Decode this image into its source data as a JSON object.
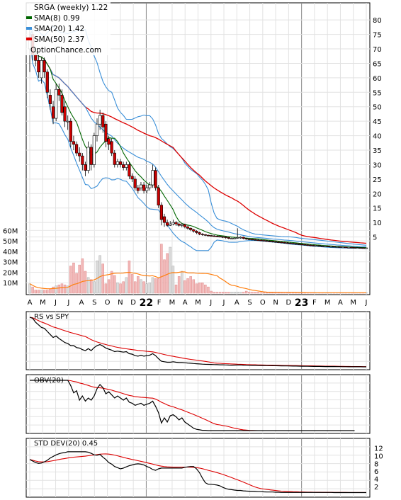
{
  "main_panel": {
    "legend": {
      "title": "SRGA (weekly) 1.22",
      "sma8": "SMA(8) 0.99",
      "sma20": "SMA(20) 1.42",
      "sma50": "SMA(50) 2.37",
      "source": "OptionChance.com"
    },
    "colors": {
      "up": "#ffffff",
      "down": "#cc0000",
      "sma8": "#006600",
      "sma20": "#3a8fd8",
      "sma50": "#dd0000",
      "bollinger": "#3a8fd8",
      "yellow": "#eeee44",
      "vol_up": "#dddddd",
      "vol_down": "#f2b8b8",
      "vol_avg": "#ff7f0e"
    }
  },
  "x_axis": {
    "ticks": [
      "A",
      "M",
      "J",
      "J",
      "A",
      "S",
      "O",
      "N",
      "D",
      "22",
      "F",
      "M",
      "A",
      "M",
      "J",
      "J",
      "A",
      "S",
      "O",
      "N",
      "D",
      "23",
      "F",
      "M",
      "A",
      "M",
      "J"
    ],
    "year_ticks": [
      "22",
      "23"
    ]
  },
  "price_axis": {
    "ticks": [
      "80",
      "75",
      "70",
      "65",
      "60",
      "55",
      "50",
      "45",
      "40",
      "35",
      "30",
      "25",
      "20",
      "15",
      "10",
      "5"
    ]
  },
  "volume_axis": {
    "ticks": [
      "60M",
      "50M",
      "40M",
      "30M",
      "20M",
      "10M"
    ]
  },
  "panels": {
    "rs": {
      "label": "RS vs SPY"
    },
    "obv": {
      "label": "OBV(20)"
    },
    "std": {
      "label": "STD DEV(20) 0.45",
      "ticks": [
        "12",
        "10",
        "8",
        "6",
        "4",
        "2"
      ]
    }
  },
  "chart_data": [
    {
      "type": "candlestick",
      "title": "SRGA (weekly) 1.22",
      "x": [
        "2021-03-29",
        "2021-04-05",
        "2021-04-12",
        "2021-04-19",
        "2021-04-26",
        "2021-05-03",
        "2021-05-10",
        "2021-05-17",
        "2021-05-24",
        "2021-05-31",
        "2021-06-07",
        "2021-06-14",
        "2021-06-21",
        "2021-06-28",
        "2021-07-05",
        "2021-07-12",
        "2021-07-19",
        "2021-07-26",
        "2021-08-02",
        "2021-08-09",
        "2021-08-16",
        "2021-08-23",
        "2021-08-30",
        "2021-09-06",
        "2021-09-13",
        "2021-09-20",
        "2021-09-27",
        "2021-10-04",
        "2021-10-11",
        "2021-10-18",
        "2021-10-25",
        "2021-11-01",
        "2021-11-08",
        "2021-11-15",
        "2021-11-22",
        "2021-11-29",
        "2021-12-06",
        "2021-12-13",
        "2021-12-20",
        "2021-12-27",
        "2022-01-03",
        "2022-01-10",
        "2022-01-17",
        "2022-01-24",
        "2022-01-31",
        "2022-02-07",
        "2022-02-14",
        "2022-02-21",
        "2022-02-28",
        "2022-03-07",
        "2022-03-14",
        "2022-03-21",
        "2022-03-28",
        "2022-04-04",
        "2022-04-11",
        "2022-04-18",
        "2022-04-25",
        "2022-05-02",
        "2022-05-09",
        "2022-05-16",
        "2022-05-23",
        "2022-05-30",
        "2022-06-06",
        "2022-06-13",
        "2022-06-20",
        "2022-06-27",
        "2022-07-04",
        "2022-07-11",
        "2022-07-18",
        "2022-07-25",
        "2022-08-01",
        "2022-08-08",
        "2022-08-15",
        "2022-08-22",
        "2022-08-29",
        "2022-09-05",
        "2022-09-12",
        "2022-09-19",
        "2022-09-26",
        "2022-10-03",
        "2022-10-10",
        "2022-10-17",
        "2022-10-24",
        "2022-10-31",
        "2022-11-07",
        "2022-11-14",
        "2022-11-21",
        "2022-11-28",
        "2022-12-05",
        "2022-12-12",
        "2022-12-19",
        "2022-12-26",
        "2023-01-02",
        "2023-01-09",
        "2023-01-16",
        "2023-01-23",
        "2023-01-30",
        "2023-02-06",
        "2023-02-13",
        "2023-02-20",
        "2023-02-27",
        "2023-03-06",
        "2023-03-13",
        "2023-03-20",
        "2023-03-27",
        "2023-04-03",
        "2023-04-10",
        "2023-04-17",
        "2023-04-24",
        "2023-05-01",
        "2023-05-08",
        "2023-05-15",
        "2023-05-22",
        "2023-05-29",
        "2023-06-05",
        "2023-06-12"
      ],
      "open": [
        70,
        75,
        68,
        66,
        60,
        66,
        62,
        54,
        50,
        46,
        56,
        54,
        50,
        45,
        45,
        38,
        37,
        34,
        33,
        30,
        28,
        36,
        30,
        40,
        44,
        47,
        44,
        39,
        38,
        34,
        30,
        31,
        30,
        29,
        30,
        26,
        25,
        22,
        22,
        23,
        21,
        22,
        23,
        28,
        22,
        16,
        12,
        10,
        9,
        9.5,
        10,
        9.5,
        9,
        9.3,
        8.5,
        8,
        7.5,
        7,
        6.5,
        6,
        5.8,
        5.6,
        5.5,
        5.4,
        5.3,
        5.2,
        5.1,
        5.0,
        4.8,
        4.5,
        4.5,
        4.6,
        4.8,
        4.9,
        4.5,
        4.3,
        4.2,
        4.1,
        4.0,
        3.9,
        3.8,
        3.7,
        3.6,
        3.5,
        3.4,
        3.3,
        3.2,
        3.1,
        3.0,
        2.9,
        2.8,
        2.7,
        2.6,
        2.5,
        2.4,
        2.3,
        2.2,
        2.1,
        2.0,
        2.0,
        1.9,
        1.8,
        1.8,
        1.7,
        1.7,
        1.6,
        1.6,
        1.5,
        1.5,
        1.4,
        1.4,
        1.35,
        1.3,
        1.3,
        1.25,
        1.22
      ],
      "close": [
        74,
        68,
        66,
        62,
        66,
        62,
        55,
        51,
        46,
        56,
        54,
        48,
        45,
        45,
        38,
        37,
        34,
        33,
        30,
        28,
        36,
        30,
        40,
        44,
        47,
        43,
        38,
        37,
        34,
        30,
        31,
        30,
        29,
        30,
        26,
        25,
        22,
        21,
        23,
        21,
        22,
        23,
        28,
        22,
        16,
        11,
        10,
        9,
        9.5,
        10,
        9.5,
        9,
        9.3,
        8.5,
        8,
        7.5,
        7,
        6.5,
        6,
        5.8,
        5.6,
        5.5,
        5.4,
        5.3,
        5.2,
        5.1,
        5.0,
        4.8,
        4.5,
        4.5,
        4.6,
        4.8,
        4.9,
        4.5,
        4.3,
        4.2,
        4.1,
        4.0,
        3.9,
        3.8,
        3.7,
        3.6,
        3.5,
        3.4,
        3.3,
        3.2,
        3.1,
        3.0,
        2.9,
        2.8,
        2.7,
        2.6,
        2.5,
        2.4,
        2.3,
        2.2,
        2.1,
        2.0,
        2.0,
        1.9,
        1.8,
        1.8,
        1.7,
        1.7,
        1.6,
        1.6,
        1.5,
        1.5,
        1.4,
        1.4,
        1.35,
        1.3,
        1.3,
        1.25,
        1.22,
        1.22
      ],
      "high": [
        77,
        76,
        70,
        68,
        67,
        67,
        63,
        56,
        52,
        58,
        58,
        56,
        52,
        47,
        46,
        40,
        38,
        36,
        34,
        31,
        38,
        37,
        41,
        46,
        49,
        48,
        45,
        40,
        39,
        35,
        32,
        32,
        31,
        31,
        31,
        27,
        26,
        23,
        24,
        24,
        23,
        24,
        30,
        29,
        23,
        17,
        13,
        11,
        10.5,
        11,
        10.5,
        10,
        9.8,
        9.6,
        9,
        8.3,
        7.8,
        7.3,
        6.8,
        6.3,
        6.0,
        5.8,
        5.7,
        5.6,
        5.5,
        5.4,
        5.3,
        5.2,
        5.0,
        4.8,
        4.9,
        8.0,
        5.2,
        5.1,
        4.7,
        4.5,
        4.4,
        4.3,
        4.2,
        4.1,
        4.0,
        3.9,
        3.8,
        3.7,
        3.6,
        3.5,
        3.4,
        3.3,
        3.2,
        3.1,
        3.0,
        2.9,
        2.8,
        2.7,
        2.6,
        2.5,
        2.4,
        2.3,
        2.2,
        2.1,
        2.0,
        1.9,
        1.9,
        1.8,
        1.8,
        1.7,
        1.7,
        1.6,
        1.6,
        1.5,
        1.5,
        1.45,
        1.4,
        1.35,
        1.3,
        1.28
      ],
      "low": [
        62,
        66,
        64,
        60,
        58,
        60,
        53,
        49,
        44,
        45,
        52,
        47,
        43,
        42,
        36,
        35,
        33,
        31,
        28,
        26,
        27,
        28,
        29,
        38,
        42,
        41,
        36,
        35,
        33,
        29,
        29,
        29,
        28,
        28,
        25,
        24,
        21,
        20,
        21,
        20,
        20,
        21,
        22,
        21,
        15,
        9,
        8.5,
        8.5,
        8.8,
        9,
        8.8,
        8.5,
        8.3,
        8,
        7.5,
        7,
        6.5,
        6,
        5.6,
        5.4,
        5.3,
        5.2,
        5.1,
        5.0,
        4.9,
        4.8,
        4.6,
        4.3,
        4.2,
        4.3,
        4.3,
        4.4,
        4.4,
        4.2,
        4.0,
        3.9,
        3.8,
        3.7,
        3.6,
        3.5,
        3.4,
        3.3,
        3.2,
        3.1,
        3.0,
        2.9,
        2.8,
        2.7,
        2.6,
        2.5,
        2.4,
        2.3,
        2.2,
        2.1,
        2.0,
        1.9,
        1.8,
        1.8,
        1.7,
        1.7,
        1.6,
        1.6,
        1.5,
        1.5,
        1.4,
        1.4,
        1.35,
        1.3,
        1.3,
        1.25,
        1.2,
        1.18,
        1.15,
        1.15,
        1.15,
        1.15
      ],
      "volume_millions": [
        9,
        6,
        3,
        3,
        3,
        3,
        3,
        4,
        6,
        7,
        8,
        9,
        8,
        7,
        26,
        29,
        19,
        27,
        33,
        21,
        15,
        13,
        11,
        31,
        36,
        28,
        9,
        13,
        21,
        17,
        10,
        9,
        11,
        15,
        31,
        18,
        11,
        16,
        13,
        11,
        9,
        10,
        15,
        14,
        14,
        47,
        32,
        38,
        44,
        26,
        8,
        16,
        21,
        12,
        14,
        16,
        13,
        9,
        10,
        10,
        8,
        6,
        2,
        1,
        1,
        1,
        1,
        1,
        1,
        1,
        1,
        1,
        1,
        1,
        2,
        1,
        1,
        1,
        1,
        0.5,
        0.5,
        0.5,
        0.5,
        0.5,
        0.5,
        0.5,
        0.5,
        0.5,
        0.5,
        0.5,
        0.5,
        0.5,
        0.5,
        0.5,
        0.5,
        0.5,
        0.5,
        0.5,
        0.5,
        0.5,
        0.5,
        0.5,
        0.5,
        0.5,
        0.5,
        0.5,
        0.5,
        0.5,
        0.5,
        0.5,
        0.5,
        0.5,
        0.5,
        0.5,
        0.5,
        0.5
      ],
      "sma8_value": 0.99,
      "sma20_value": 1.42,
      "sma50_value": 2.37,
      "price_ylim": [
        0,
        82
      ],
      "volume_ylim": [
        0,
        65
      ]
    },
    {
      "type": "line",
      "title": "RS vs SPY",
      "series": [
        {
          "values": [
            100,
            98,
            90,
            85,
            80,
            78,
            72,
            66,
            60,
            63,
            58,
            54,
            50,
            48,
            44,
            44,
            40,
            39,
            36,
            34,
            38,
            34,
            40,
            44,
            46,
            43,
            39,
            37,
            35,
            32,
            33,
            32,
            31,
            32,
            28,
            27,
            24,
            23,
            25,
            23,
            24,
            25,
            28,
            24,
            18,
            13,
            12,
            11,
            11,
            12,
            11,
            10.5,
            10.5,
            10,
            9.5,
            9,
            8.5,
            8,
            7.6,
            7.2,
            7,
            6.8,
            6.6,
            6.4,
            6.2,
            6.0,
            5.9,
            5.7,
            5.4,
            5.3,
            5.4,
            5.6,
            5.7,
            5.3,
            5.1,
            5.0,
            4.9,
            4.8,
            4.7,
            4.6,
            4.5,
            4.4,
            4.3,
            4.2,
            4.1,
            4.0,
            3.9,
            3.8,
            3.7,
            3.6,
            3.5,
            3.4,
            3.3,
            3.2,
            3.1,
            3.0,
            2.9,
            2.8,
            2.7,
            2.7,
            2.6,
            2.5,
            2.5,
            2.4,
            2.4,
            2.3,
            2.3,
            2.2,
            2.2,
            2.1,
            2.1,
            2.0,
            2.0,
            2.0,
            1.9,
            1.9
          ]
        }
      ]
    },
    {
      "type": "line",
      "title": "OBV(20)",
      "series": [
        {
          "values": [
            100,
            100,
            100,
            100,
            100,
            100,
            100,
            100,
            100,
            100,
            100,
            100,
            100,
            100,
            90,
            76,
            80,
            62,
            70,
            60,
            66,
            62,
            70,
            84,
            92,
            86,
            74,
            78,
            72,
            66,
            70,
            66,
            62,
            66,
            58,
            56,
            52,
            54,
            56,
            52,
            54,
            56,
            60,
            50,
            38,
            18,
            28,
            20,
            32,
            34,
            30,
            24,
            28,
            20,
            16,
            12,
            8,
            6,
            5,
            4,
            4,
            3.5,
            3.5,
            3.5,
            3.5,
            3.5,
            3.5,
            3.5,
            3.5,
            3.5,
            3.5,
            3.5,
            3.5,
            3.5,
            3.5,
            3.5,
            3.5,
            3.5,
            3.5,
            3.5,
            3.5,
            3.5,
            3.5,
            3.5,
            3.5,
            3.5,
            3.5,
            3.5,
            3.5,
            3.5,
            3.5,
            3.5,
            3.5,
            3.5,
            3.5,
            3.5,
            3.5,
            3.5,
            3.5,
            3.5,
            3.5,
            3.5,
            3.5,
            3.5,
            3.5,
            3.5,
            3.5,
            3.5,
            3.5,
            3.5,
            3.5,
            3.5
          ]
        }
      ]
    },
    {
      "type": "line",
      "title": "STD DEV(20) 0.45",
      "ylim": [
        0,
        13
      ],
      "series": [
        {
          "values": [
            9,
            8.6,
            8.2,
            8.0,
            8.1,
            8.4,
            8.8,
            9.4,
            9.8,
            10.2,
            10.5,
            10.7,
            10.8,
            11,
            11,
            11,
            11,
            11,
            11,
            11,
            10.9,
            10.6,
            10.2,
            10.1,
            10.3,
            9.6,
            9.0,
            8.2,
            7.8,
            7.2,
            6.9,
            6.6,
            6.8,
            7.1,
            7.4,
            7.6,
            7.8,
            7.9,
            7.8,
            7.6,
            7.2,
            6.9,
            6.4,
            6.2,
            6.6,
            6.8,
            6.8,
            6.8,
            6.8,
            6.8,
            6.8,
            6.8,
            6.8,
            7.0,
            7.1,
            7.2,
            7.2,
            6.6,
            5.6,
            4.2,
            3.0,
            2.6,
            2.6,
            2.5,
            2.4,
            2.2,
            1.8,
            1.5,
            1.3,
            1.2,
            1.1,
            1.0,
            1.0,
            0.9,
            0.85,
            0.8,
            0.8,
            0.75,
            0.7,
            0.7,
            0.65,
            0.6,
            0.6,
            0.6,
            0.55,
            0.55,
            0.5,
            0.5,
            0.5,
            0.5,
            0.5,
            0.5,
            0.5,
            0.5,
            0.5,
            0.5,
            0.5,
            0.5,
            0.5,
            0.5,
            0.5,
            0.5,
            0.5,
            0.5,
            0.45,
            0.45,
            0.45,
            0.45,
            0.45,
            0.45,
            0.45,
            0.45,
            0.45,
            0.45,
            0.45,
            0.45
          ]
        }
      ]
    }
  ]
}
